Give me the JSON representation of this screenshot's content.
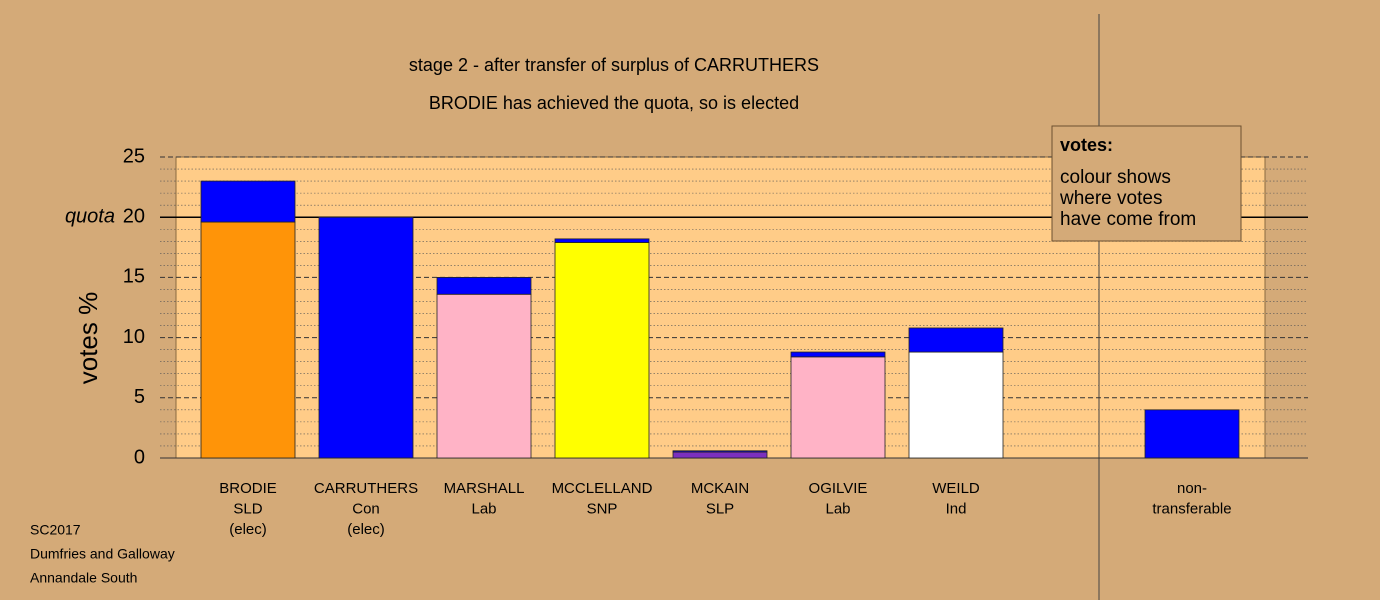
{
  "chart_data": {
    "type": "stacked-bar",
    "title": "stage 2 - after transfer of surplus of CARRUTHERS",
    "subtitle": "BRODIE has achieved the quota, so is elected",
    "y_label": "votes %",
    "categories": [
      [
        "BRODIE",
        "SLD",
        "(elec)"
      ],
      [
        "CARRUTHERS",
        "Con",
        "(elec)"
      ],
      [
        "MARSHALL",
        "Lab"
      ],
      [
        "MCCLELLAND",
        "SNP"
      ],
      [
        "MCKAIN",
        "SLP"
      ],
      [
        "OGILVIE",
        "Lab"
      ],
      [
        "WEILD",
        "Ind"
      ],
      null,
      [
        "non-",
        "transferable"
      ]
    ],
    "series": [
      {
        "colors": [
          "#ff9408",
          "#0000ff",
          "#ffb3c6",
          "#ffff00",
          "#7b2fbe",
          "#ffb3c6",
          "#ffffff",
          null,
          null
        ],
        "values": [
          19.6,
          20.0,
          13.6,
          17.9,
          0.5,
          8.4,
          8.8,
          null,
          null
        ]
      },
      {
        "color": "#0000ff",
        "values": [
          3.4,
          null,
          1.4,
          0.3,
          0.1,
          0.4,
          2.0,
          null,
          4.0
        ]
      }
    ],
    "ylim": [
      0,
      25
    ],
    "yticks": [
      0,
      5,
      10,
      15,
      20,
      25
    ],
    "minor_yticks": [
      1,
      2,
      3,
      4,
      6,
      7,
      8,
      9,
      11,
      12,
      13,
      14,
      16,
      17,
      18,
      19,
      21,
      22,
      23,
      24
    ],
    "quota": {
      "label": "quota",
      "value": 20
    },
    "legend": {
      "title": "votes:",
      "lines": [
        "colour shows",
        "where votes",
        "have come from"
      ]
    },
    "footer": [
      "SC2017",
      "Dumfries and Galloway",
      "Annandale South"
    ]
  }
}
